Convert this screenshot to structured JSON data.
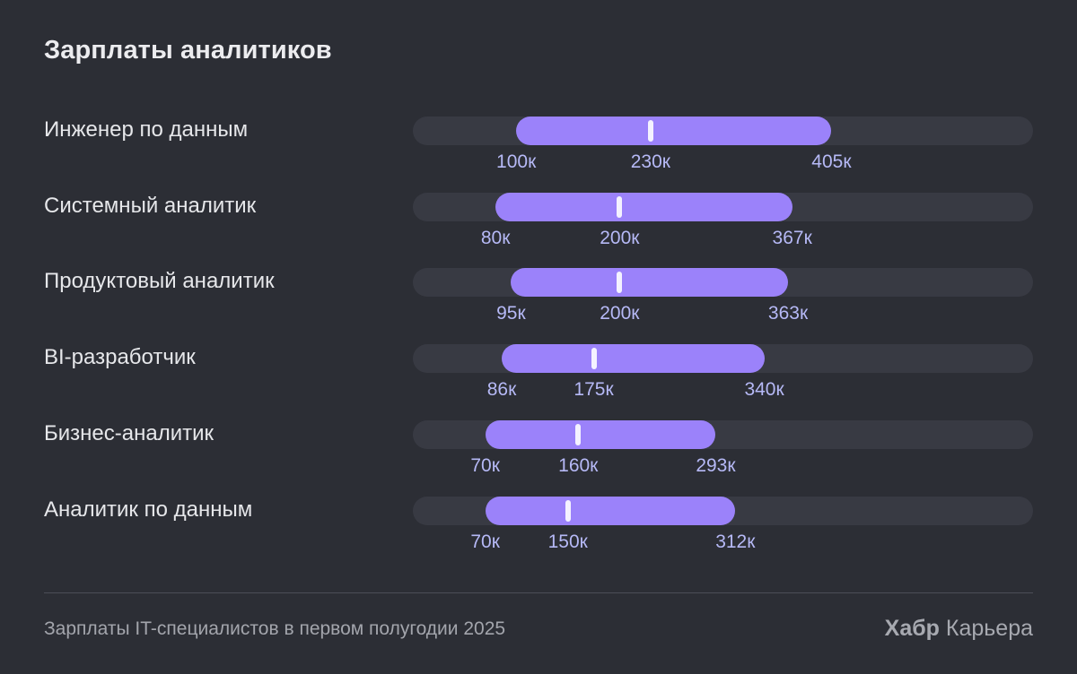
{
  "chart_data": {
    "type": "range-bar",
    "title": "Зарплаты аналитиков",
    "xlim": [
      0,
      600
    ],
    "unit": "к",
    "series": [
      {
        "name": "Инженер по данным",
        "min": 100,
        "median": 230,
        "max": 405,
        "min_label": "100к",
        "median_label": "230к",
        "max_label": "405к"
      },
      {
        "name": "Системный аналитик",
        "min": 80,
        "median": 200,
        "max": 367,
        "min_label": "80к",
        "median_label": "200к",
        "max_label": "367к"
      },
      {
        "name": "Продуктовый аналитик",
        "min": 95,
        "median": 200,
        "max": 363,
        "min_label": "95к",
        "median_label": "200к",
        "max_label": "363к"
      },
      {
        "name": "BI-разработчик",
        "min": 86,
        "median": 175,
        "max": 340,
        "min_label": "86к",
        "median_label": "175к",
        "max_label": "340к"
      },
      {
        "name": "Бизнес-аналитик",
        "min": 70,
        "median": 160,
        "max": 293,
        "min_label": "70к",
        "median_label": "160к",
        "max_label": "293к"
      },
      {
        "name": "Аналитик по данным",
        "min": 70,
        "median": 150,
        "max": 312,
        "min_label": "70к",
        "median_label": "150к",
        "max_label": "312к"
      }
    ]
  },
  "footer": {
    "note": "Зарплаты IT-специалистов в первом полугодии 2025",
    "brand_bold": "Хабр",
    "brand_rest": "Карьера"
  },
  "colors": {
    "background": "#2c2e35",
    "track": "#383a43",
    "bar": "#9b82fa",
    "median": "#f4f2ff",
    "tick_text": "#b6b9f6"
  }
}
